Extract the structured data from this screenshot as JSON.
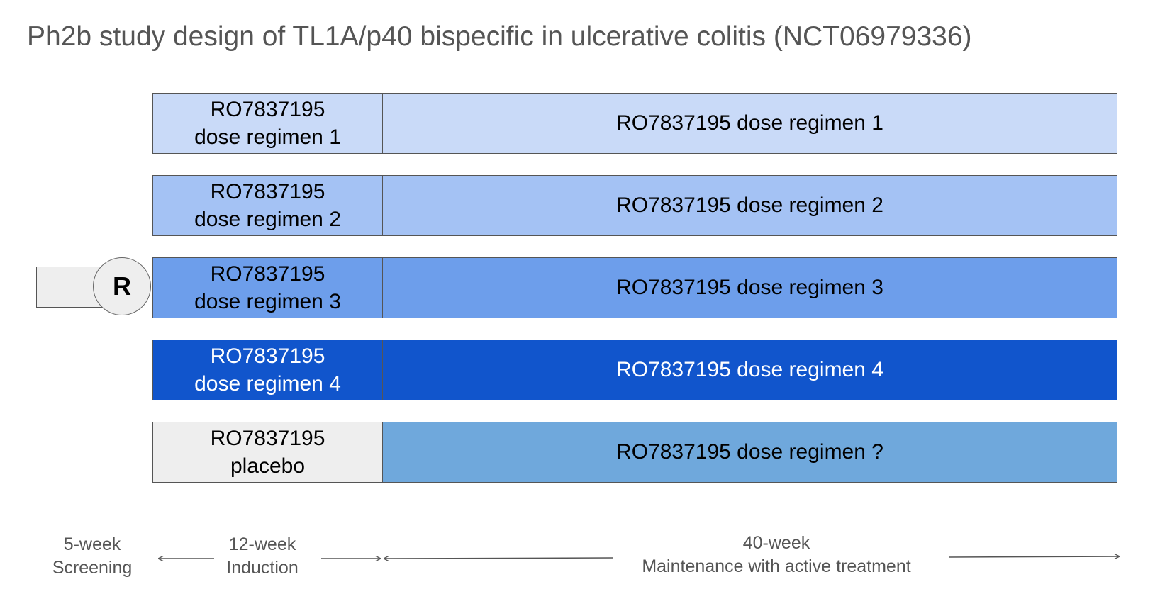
{
  "title": "Ph2b study design of TL1A/p40 bispecific in ulcerative colitis (NCT06979336)",
  "randomization_label": "R",
  "arms": [
    {
      "induction_line1": "RO7837195",
      "induction_line2": "dose regimen 1",
      "maintenance": "RO7837195 dose regimen 1",
      "induction_color": "#c9daf8",
      "maintenance_color": "#c9daf8",
      "text_color": "#000000"
    },
    {
      "induction_line1": "RO7837195",
      "induction_line2": "dose regimen 2",
      "maintenance": "RO7837195 dose regimen 2",
      "induction_color": "#a4c2f4",
      "maintenance_color": "#a4c2f4",
      "text_color": "#000000"
    },
    {
      "induction_line1": "RO7837195",
      "induction_line2": "dose regimen 3",
      "maintenance": "RO7837195 dose regimen 3",
      "induction_color": "#6d9eeb",
      "maintenance_color": "#6d9eeb",
      "text_color": "#000000"
    },
    {
      "induction_line1": "RO7837195",
      "induction_line2": "dose regimen 4",
      "maintenance": "RO7837195 dose regimen 4",
      "induction_color": "#1155cc",
      "maintenance_color": "#1155cc",
      "text_color": "#ffffff"
    },
    {
      "induction_line1": "RO7837195",
      "induction_line2": "placebo",
      "maintenance": "RO7837195 dose regimen ?",
      "induction_color": "#eeeeee",
      "maintenance_color": "#6fa8dc",
      "text_color": "#000000"
    }
  ],
  "timeline": {
    "screening": {
      "line1": "5-week",
      "line2": "Screening"
    },
    "induction": {
      "line1": "12-week",
      "line2": "Induction"
    },
    "maintenance": {
      "line1": "40-week",
      "line2": "Maintenance with active treatment"
    }
  }
}
